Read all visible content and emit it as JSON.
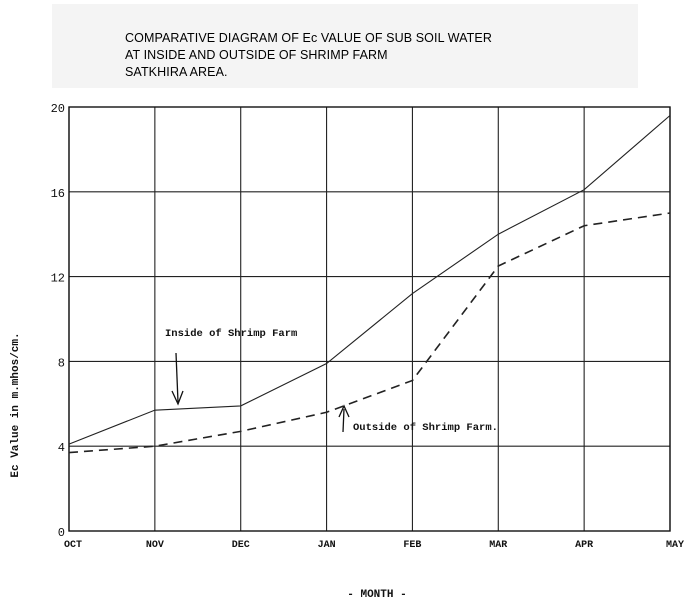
{
  "title_lines": [
    "COMPARATIVE DIAGRAM OF Ec VALUE OF SUB SOIL WATER",
    "AT INSIDE AND OUTSIDE OF SHRIMP FARM",
    "SATKHIRA AREA."
  ],
  "chart_data": {
    "type": "line",
    "title": "COMPARATIVE DIAGRAM OF Ec VALUE OF SUB SOIL WATER AT INSIDE AND OUTSIDE OF SHRIMP FARM SATKHIRA AREA.",
    "xlabel": "- MONTH -",
    "ylabel": "Ec Value in m.mhos/cm.",
    "categories": [
      "OCT",
      "NOV",
      "DEC",
      "JAN",
      "FEB",
      "MAR",
      "APR",
      "MAY"
    ],
    "ylim": [
      0,
      20
    ],
    "yticks": [
      0,
      4,
      8,
      12,
      16,
      20
    ],
    "grid": true,
    "series": [
      {
        "name": "Inside of Shrimp Farm",
        "style": "solid",
        "values": [
          4.1,
          5.7,
          5.9,
          7.9,
          11.2,
          14.0,
          16.1,
          19.6
        ]
      },
      {
        "name": "Outside of Shrimp Farm.",
        "style": "dashed",
        "values": [
          3.7,
          4.0,
          4.7,
          5.6,
          7.1,
          12.5,
          14.4,
          15.0
        ]
      }
    ]
  }
}
